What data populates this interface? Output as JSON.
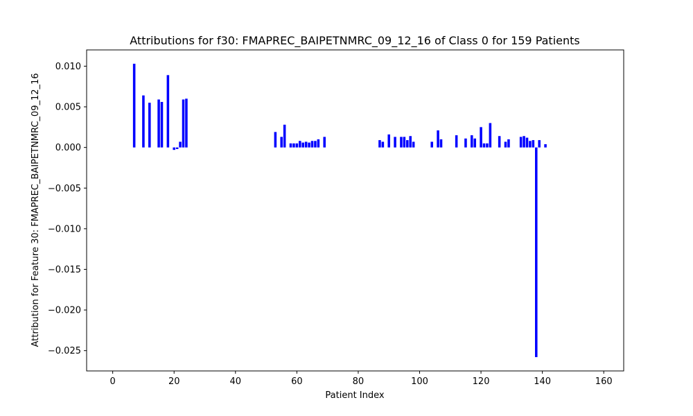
{
  "chart_data": {
    "type": "bar",
    "title": "Attributions for f30: FMAPREC_BAIPETNMRC_09_12_16 of Class 0 for 159 Patients",
    "xlabel": "Patient Index",
    "ylabel": "Attribution for Feature 30: FMAPREC_BAIPETNMRC_09_12_16",
    "xlim": [
      -8.5,
      166.5
    ],
    "ylim": [
      -0.0275,
      0.012
    ],
    "xticks": [
      0,
      20,
      40,
      60,
      80,
      100,
      120,
      140,
      160
    ],
    "xtick_labels": [
      "0",
      "20",
      "40",
      "60",
      "80",
      "100",
      "120",
      "140",
      "160"
    ],
    "yticks": [
      0.01,
      0.005,
      0.0,
      -0.005,
      -0.01,
      -0.015,
      -0.02,
      -0.025
    ],
    "ytick_labels": [
      "0.010",
      "0.005",
      "0.000",
      "−0.005",
      "−0.010",
      "−0.015",
      "−0.020",
      "−0.025"
    ],
    "bar_color": "#0000ff",
    "grid": false,
    "x": [
      7,
      10,
      12,
      15,
      16,
      18,
      20,
      21,
      22,
      23,
      24,
      53,
      55,
      56,
      58,
      59,
      60,
      61,
      62,
      63,
      64,
      65,
      66,
      67,
      69,
      87,
      88,
      90,
      92,
      94,
      95,
      96,
      97,
      98,
      104,
      106,
      107,
      112,
      115,
      117,
      118,
      120,
      121,
      122,
      123,
      126,
      128,
      129,
      133,
      134,
      135,
      136,
      137,
      138,
      139,
      141
    ],
    "values": [
      0.0103,
      0.0064,
      0.0055,
      0.0059,
      0.0056,
      0.0089,
      -0.0003,
      -0.0002,
      0.0007,
      0.0059,
      0.006,
      0.0019,
      0.0013,
      0.0028,
      0.0005,
      0.0005,
      0.0005,
      0.0008,
      0.0006,
      0.0007,
      0.0006,
      0.0008,
      0.0008,
      0.001,
      0.0013,
      0.0009,
      0.0007,
      0.0016,
      0.0013,
      0.0013,
      0.0013,
      0.0009,
      0.0014,
      0.0007,
      0.0007,
      0.0021,
      0.001,
      0.0015,
      0.0011,
      0.0015,
      0.0011,
      0.0025,
      0.0005,
      0.0005,
      0.003,
      0.0014,
      0.0007,
      0.001,
      0.0013,
      0.0014,
      0.0012,
      0.0008,
      0.0009,
      -0.0258,
      0.0009,
      0.0004
    ]
  }
}
